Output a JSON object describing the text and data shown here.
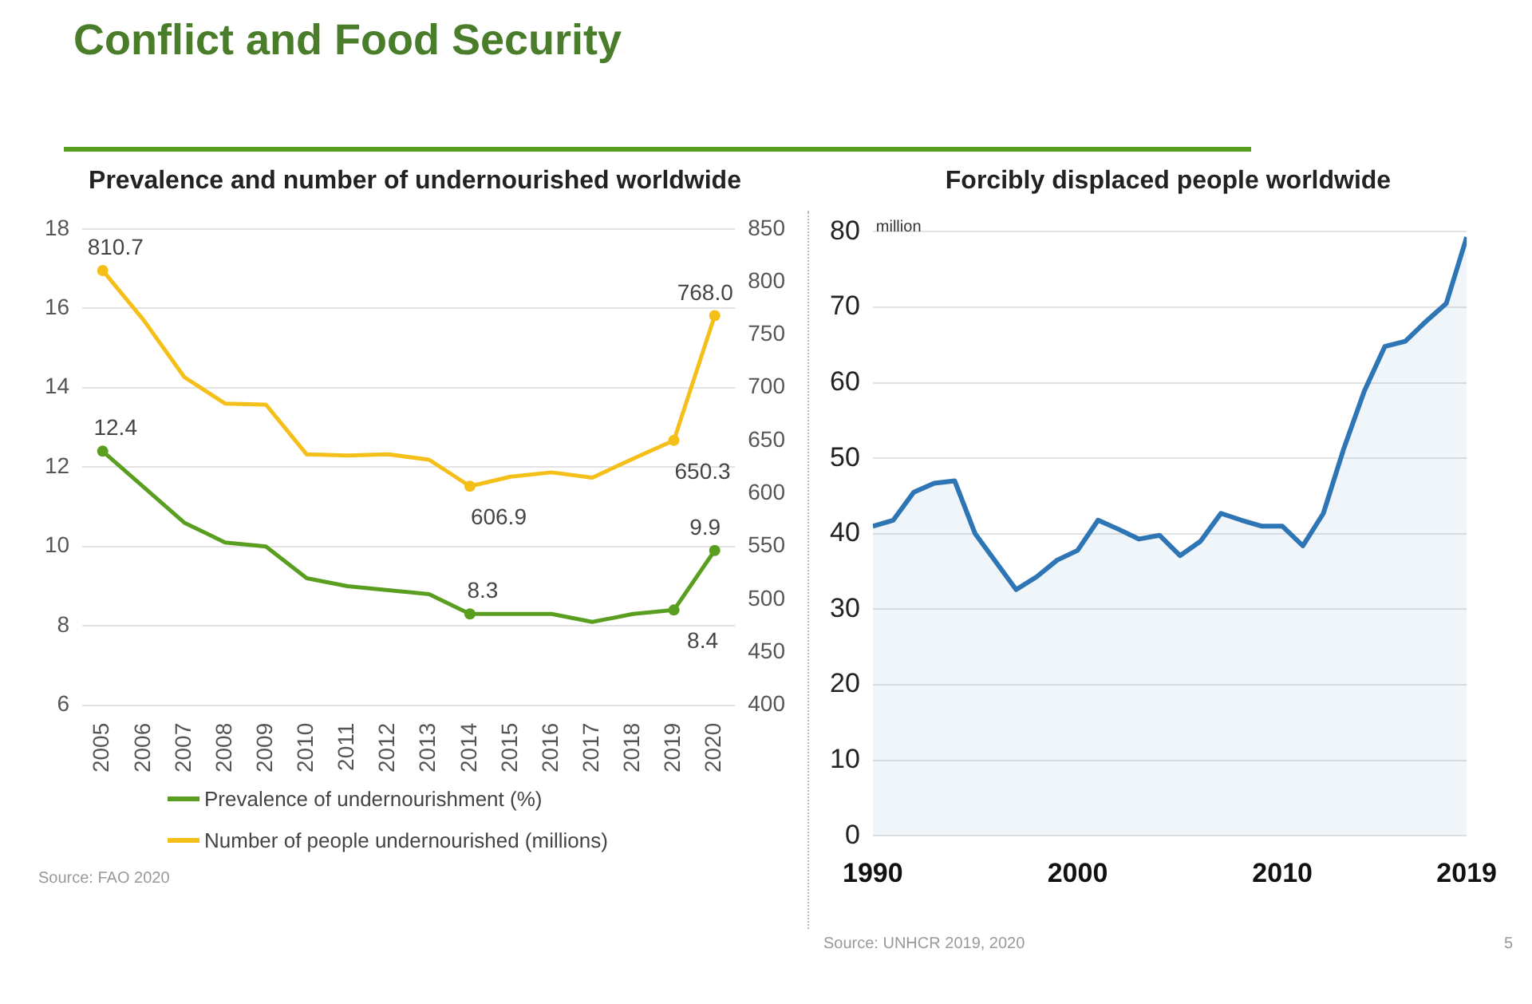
{
  "chart_data": [
    {
      "type": "line",
      "title": "Conflict and Food Security",
      "subtitle": "Prevalence and number of undernourished worldwide",
      "categories": [
        "2005",
        "2006",
        "2007",
        "2008",
        "2009",
        "2010",
        "2011",
        "2012",
        "2013",
        "2014",
        "2015",
        "2016",
        "2017",
        "2018",
        "2019",
        "2020"
      ],
      "series": [
        {
          "name": "Prevalence of undernourishment (%)",
          "color": "#5a9e1f",
          "values": [
            12.4,
            11.5,
            10.6,
            10.1,
            10.0,
            9.2,
            9.0,
            8.9,
            8.8,
            8.3,
            8.3,
            8.3,
            8.1,
            8.3,
            8.4,
            9.9
          ],
          "value_labels": [
            "12.4",
            null,
            null,
            null,
            null,
            null,
            null,
            null,
            null,
            "8.3",
            null,
            null,
            null,
            null,
            "8.4",
            "9.9"
          ]
        },
        {
          "name": "Number of people undernourished (millions)",
          "color": "#f5bf1a",
          "axis": "y2",
          "values": [
            810.7,
            764,
            710,
            685,
            684,
            637,
            636,
            637,
            632,
            606.9,
            616,
            620,
            615,
            633,
            650.3,
            768.0
          ],
          "value_labels": [
            "810.7",
            null,
            null,
            null,
            null,
            null,
            null,
            null,
            null,
            "606.9",
            null,
            null,
            null,
            null,
            "650.3",
            "768.0"
          ]
        }
      ],
      "ylim": [
        6,
        18
      ],
      "yticks": [
        6,
        8,
        10,
        12,
        14,
        16,
        18
      ],
      "y2lim": [
        400,
        850
      ],
      "y2ticks": [
        400,
        450,
        500,
        550,
        600,
        650,
        700,
        750,
        800,
        850
      ],
      "grid": "y",
      "legend": "bottom",
      "annotations": [
        "Source: FAO 2020"
      ]
    },
    {
      "type": "area",
      "title": "Forcibly displaced people worldwide",
      "ylabel": "million",
      "x": [
        1990,
        1991,
        1992,
        1993,
        1994,
        1995,
        1996,
        1997,
        1998,
        1999,
        2000,
        2001,
        2002,
        2003,
        2004,
        2005,
        2006,
        2007,
        2008,
        2009,
        2010,
        2011,
        2012,
        2013,
        2014,
        2015,
        2016,
        2017,
        2018,
        2019
      ],
      "series": [
        {
          "color": "#2e75b6",
          "values": [
            41.0,
            41.8,
            45.5,
            46.7,
            47.0,
            40.0,
            36.3,
            32.6,
            34.3,
            36.5,
            37.8,
            41.8,
            40.6,
            39.3,
            39.8,
            37.1,
            39.0,
            42.7,
            41.8,
            41.0,
            41.0,
            38.4,
            42.7,
            51.3,
            58.9,
            64.8,
            65.5,
            68.1,
            70.5,
            79.3
          ]
        }
      ],
      "xlim": [
        1990,
        2019
      ],
      "xticks": [
        1990,
        2000,
        2010,
        2019
      ],
      "ylim": [
        0,
        80
      ],
      "yticks": [
        0,
        10,
        20,
        30,
        40,
        50,
        60,
        70,
        80
      ],
      "grid": "y",
      "annotations": [
        "Source: UNHCR 2019, 2020",
        "5"
      ]
    }
  ]
}
